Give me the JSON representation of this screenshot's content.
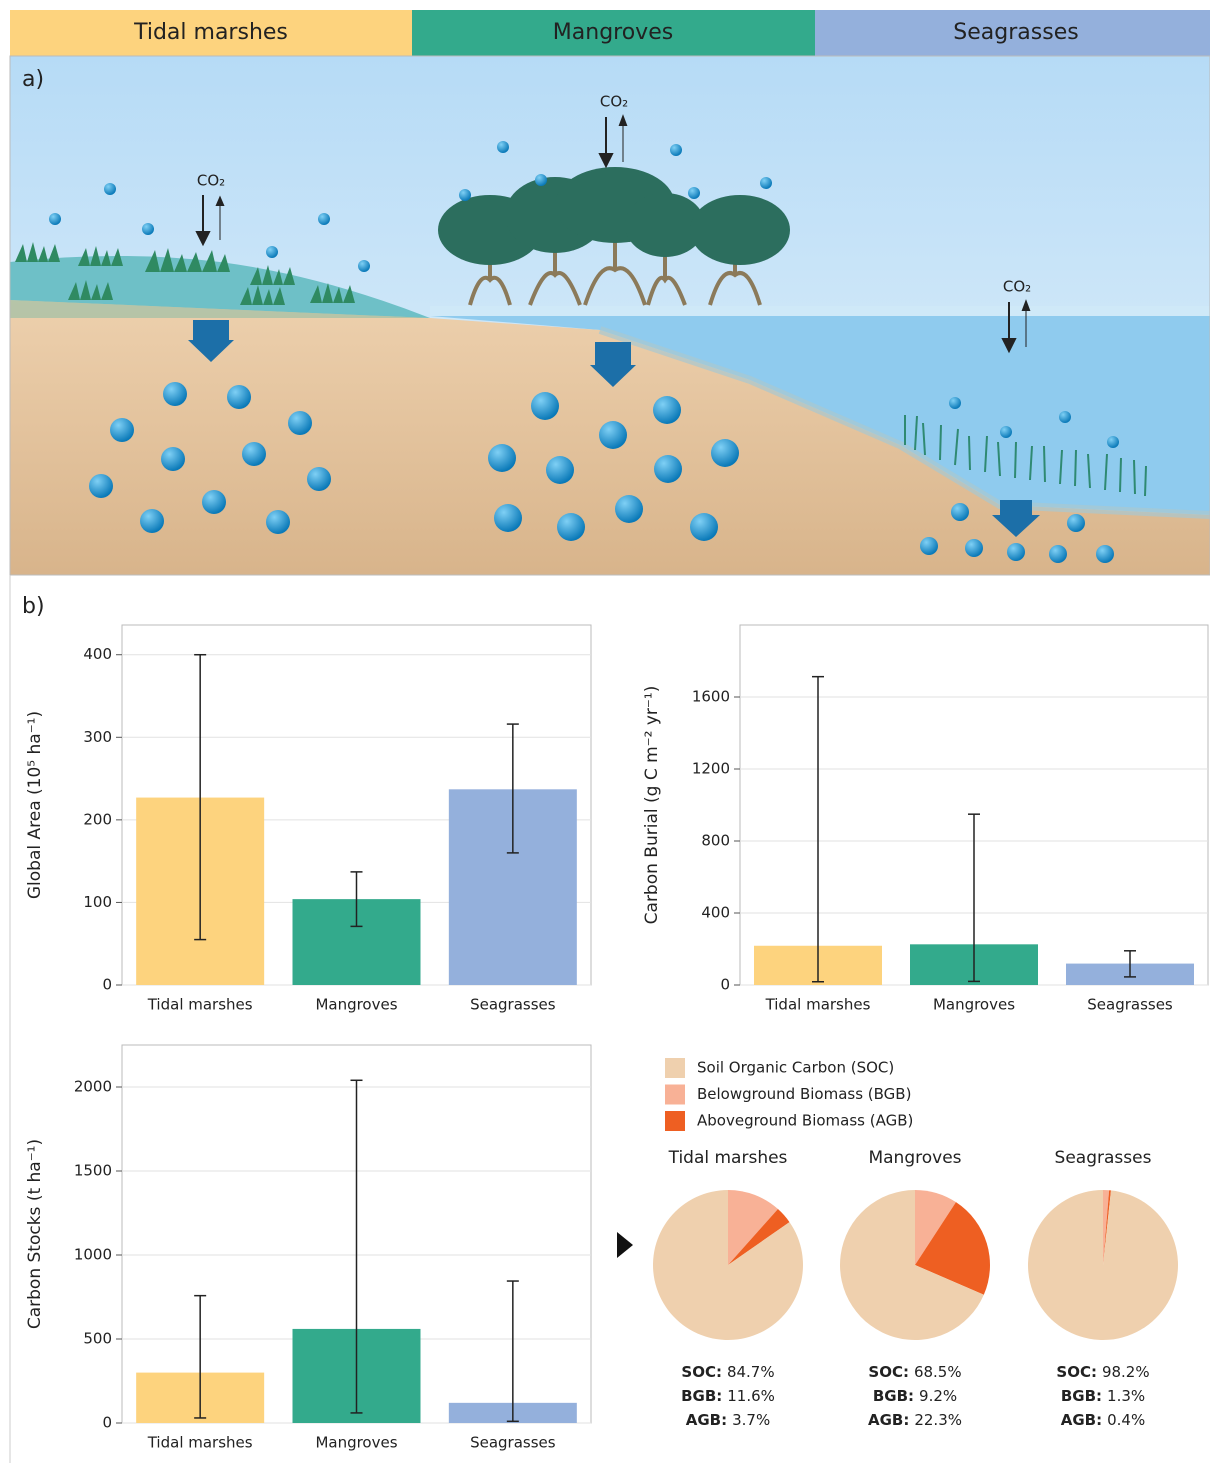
{
  "header": [
    "Tidal marshes",
    "Mangroves",
    "Seagrasses"
  ],
  "panel_a": {
    "label": "a)",
    "co2_labels": [
      "CO₂",
      "CO₂",
      "CO₂"
    ]
  },
  "panel_b": {
    "label": "b)"
  },
  "chart_data": [
    {
      "type": "bar",
      "ylabel": "Global Area (10⁵ ha⁻¹)",
      "categories": [
        "Tidal marshes",
        "Mangroves",
        "Seagrasses"
      ],
      "values": [
        227,
        104,
        237
      ],
      "error_ranges": [
        [
          55,
          400
        ],
        [
          71,
          137
        ],
        [
          160,
          316
        ]
      ],
      "colors": [
        "#fdd37e",
        "#33aa8c",
        "#94b0dc"
      ],
      "ylim": [
        0,
        436
      ],
      "yticks": [
        0,
        100,
        200,
        300,
        400
      ],
      "grid": true
    },
    {
      "type": "bar",
      "ylabel": "Carbon Burial (g C m⁻² yr⁻¹)",
      "categories": [
        "Tidal marshes",
        "Mangroves",
        "Seagrasses"
      ],
      "values": [
        218,
        226,
        119
      ],
      "error_ranges": [
        [
          18,
          1713
        ],
        [
          20,
          949
        ],
        [
          45,
          190
        ]
      ],
      "colors": [
        "#fdd37e",
        "#33aa8c",
        "#94b0dc"
      ],
      "ylim": [
        0,
        2000
      ],
      "yticks": [
        0,
        400,
        800,
        1200,
        1600
      ],
      "grid": true
    },
    {
      "type": "bar",
      "ylabel": "Carbon Stocks (t ha⁻¹)",
      "categories": [
        "Tidal marshes",
        "Mangroves",
        "Seagrasses"
      ],
      "values": [
        300,
        560,
        120
      ],
      "error_ranges": [
        [
          30,
          758
        ],
        [
          60,
          2040
        ],
        [
          10,
          845
        ]
      ],
      "colors": [
        "#fdd37e",
        "#33aa8c",
        "#94b0dc"
      ],
      "ylim": [
        0,
        2250
      ],
      "yticks": [
        0,
        500,
        1000,
        1500,
        2000
      ],
      "grid": true
    },
    {
      "type": "pie",
      "legend": [
        "Soil Organic Carbon (SOC)",
        "Belowground Biomass (BGB)",
        "Aboveground Biomass (AGB)"
      ],
      "colors": [
        "#efd0ae",
        "#f8b196",
        "#ee5f22"
      ],
      "pies": [
        {
          "title": "Tidal marshes",
          "values": [
            84.7,
            11.6,
            3.7
          ],
          "label_names": [
            "SOC:",
            "BGB:",
            "AGB:"
          ],
          "value_labels": [
            "84.7%",
            "11.6%",
            "3.7%"
          ]
        },
        {
          "title": "Mangroves",
          "values": [
            68.5,
            9.2,
            22.3
          ],
          "label_names": [
            "SOC:",
            "BGB:",
            "AGB:"
          ],
          "value_labels": [
            "68.5%",
            "9.2%",
            "22.3%"
          ]
        },
        {
          "title": "Seagrasses",
          "values": [
            98.2,
            1.3,
            0.4
          ],
          "label_names": [
            "SOC:",
            "BGB:",
            "AGB:"
          ],
          "value_labels": [
            "98.2%",
            "1.3%",
            "0.4%"
          ]
        }
      ]
    }
  ]
}
